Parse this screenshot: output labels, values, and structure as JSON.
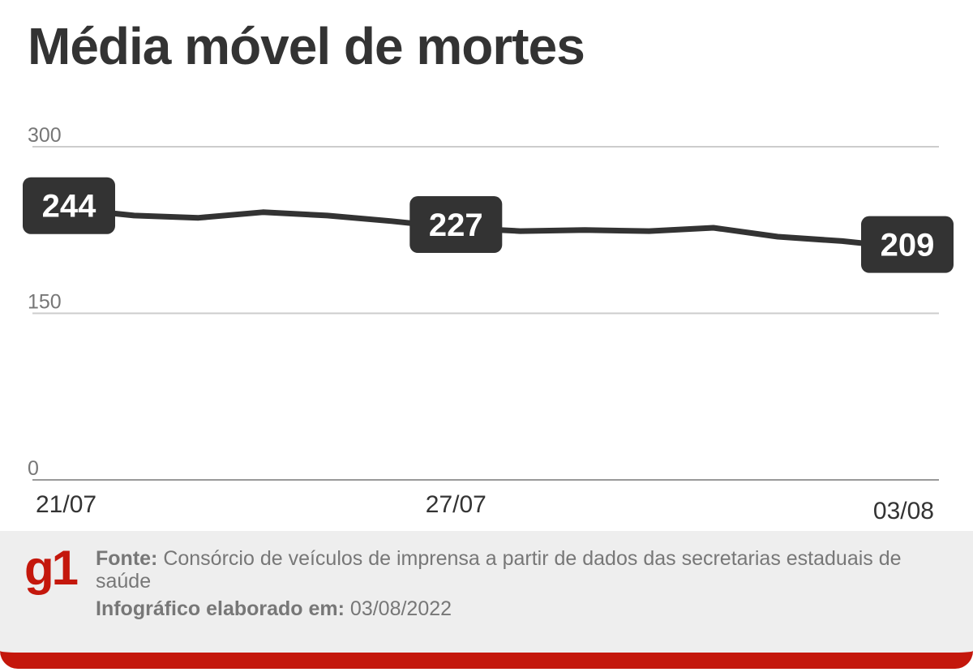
{
  "title": "Média móvel de mortes",
  "chart_data": {
    "type": "line",
    "title": "Média móvel de mortes",
    "x": [
      "21/07",
      "22/07",
      "23/07",
      "24/07",
      "25/07",
      "26/07",
      "27/07",
      "28/07",
      "29/07",
      "30/07",
      "31/07",
      "01/08",
      "02/08",
      "03/08"
    ],
    "x_tick_labels": [
      "21/07",
      "27/07",
      "03/08"
    ],
    "y_ticks": [
      300,
      150,
      0
    ],
    "ylim": [
      0,
      300
    ],
    "series": [
      {
        "values": [
          244,
          238,
          236,
          241,
          238,
          233,
          227,
          224,
          225,
          224,
          227,
          219,
          215,
          209
        ]
      }
    ],
    "data_labels": [
      {
        "x": "21/07",
        "value": "244"
      },
      {
        "x": "27/07",
        "value": "227"
      },
      {
        "x": "03/08",
        "value": "209"
      }
    ],
    "grid": true,
    "line_color": "#333333",
    "grid_color": "#cccccc"
  },
  "footer": {
    "logo": "g1",
    "source_label": "Fonte:",
    "source_text": " Consórcio de veículos de imprensa a partir de dados das secretarias estaduais de saúde",
    "credit_label": "Infográfico elaborado em:",
    "credit_text": " 03/08/2022",
    "brand_color": "#c4170c"
  }
}
